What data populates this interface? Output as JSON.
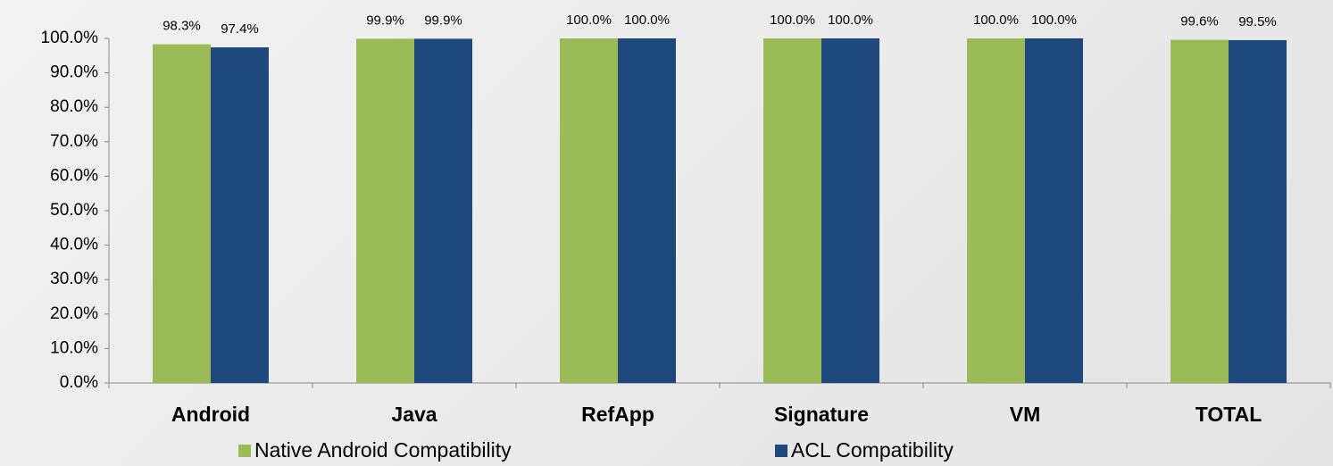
{
  "chart_data": {
    "type": "bar",
    "categories": [
      "Android",
      "Java",
      "RefApp",
      "Signature",
      "VM",
      "TOTAL"
    ],
    "series": [
      {
        "name": "Native Android Compatibility",
        "color": "#9bbb59",
        "values": [
          98.3,
          99.9,
          100.0,
          100.0,
          100.0,
          99.6
        ],
        "value_labels": [
          "98.3%",
          "99.9%",
          "100.0%",
          "100.0%",
          "100.0%",
          "99.6%"
        ]
      },
      {
        "name": "ACL Compatibility",
        "color": "#1f497d",
        "values": [
          97.4,
          99.9,
          100.0,
          100.0,
          100.0,
          99.5
        ],
        "value_labels": [
          "97.4%",
          "99.9%",
          "100.0%",
          "100.0%",
          "100.0%",
          "99.5%"
        ]
      }
    ],
    "ylim": [
      0,
      100
    ],
    "yticks": [
      {
        "value": 0,
        "label": "0.0%"
      },
      {
        "value": 10,
        "label": "10.0%"
      },
      {
        "value": 20,
        "label": "20.0%"
      },
      {
        "value": 30,
        "label": "30.0%"
      },
      {
        "value": 40,
        "label": "40.0%"
      },
      {
        "value": 50,
        "label": "50.0%"
      },
      {
        "value": 60,
        "label": "60.0%"
      },
      {
        "value": 70,
        "label": "70.0%"
      },
      {
        "value": 80,
        "label": "80.0%"
      },
      {
        "value": 90,
        "label": "90.0%"
      },
      {
        "value": 100,
        "label": "100.0%"
      }
    ],
    "grid": false,
    "legend": "bottom"
  }
}
